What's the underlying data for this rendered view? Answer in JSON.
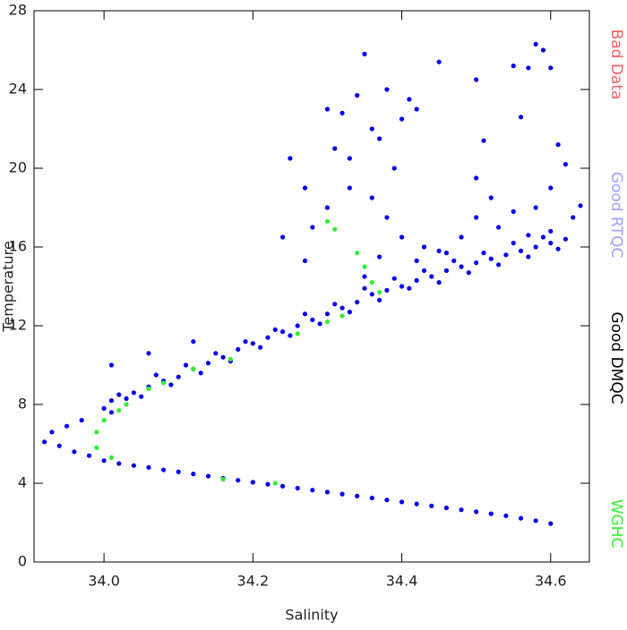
{
  "chart_data": {
    "type": "scatter",
    "x_label": "Salinity",
    "y_label": "Temperature",
    "xlim": [
      33.906,
      34.652
    ],
    "ylim": [
      0,
      28
    ],
    "xticks": [
      {
        "value": 34,
        "label": "34.0"
      },
      34.2,
      34.4,
      34.6
    ],
    "yticks": [
      0,
      4,
      8,
      12,
      16,
      20,
      24,
      28
    ],
    "series": [
      {
        "name": "Bad Data",
        "color": "#f06060",
        "x": [],
        "y": []
      },
      {
        "name": "Good RTQC",
        "color": "#a0a0ff",
        "x": [],
        "y": []
      },
      {
        "name": "Good DMQC",
        "color": "#000000",
        "marker_color": "#0000ee",
        "x": [
          34.0,
          34.02,
          34.04,
          34.06,
          34.08,
          34.1,
          34.12,
          34.14,
          34.16,
          34.18,
          34.2,
          34.22,
          34.24,
          34.26,
          34.28,
          34.3,
          34.32,
          34.34,
          34.36,
          34.38,
          34.4,
          34.42,
          34.44,
          34.46,
          34.48,
          34.5,
          34.52,
          34.54,
          34.56,
          34.58,
          34.6,
          33.92,
          33.94,
          33.96,
          33.98,
          33.93,
          33.95,
          33.97,
          34.0,
          34.01,
          34.03,
          34.04,
          34.06,
          34.08,
          34.1,
          34.12,
          34.14,
          34.16,
          34.18,
          34.2,
          34.22,
          34.24,
          34.26,
          34.28,
          34.3,
          34.32,
          34.34,
          34.36,
          34.38,
          34.4,
          34.42,
          34.44,
          34.46,
          34.48,
          34.5,
          34.52,
          34.54,
          34.56,
          34.58,
          34.6,
          34.62,
          34.01,
          34.02,
          34.05,
          34.07,
          34.09,
          34.11,
          34.13,
          34.15,
          34.17,
          34.19,
          34.21,
          34.23,
          34.25,
          34.27,
          34.29,
          34.31,
          34.33,
          34.35,
          34.37,
          34.39,
          34.41,
          34.43,
          34.45,
          34.47,
          34.49,
          34.51,
          34.53,
          34.55,
          34.57,
          34.59,
          34.61,
          34.25,
          34.27,
          34.3,
          34.32,
          34.31,
          34.33,
          34.34,
          34.35,
          34.36,
          34.37,
          34.38,
          34.39,
          34.4,
          34.41,
          34.42,
          34.45,
          34.5,
          34.51,
          34.5,
          34.52,
          34.55,
          34.56,
          34.57,
          34.58,
          34.59,
          34.6,
          34.61,
          34.62,
          34.6,
          34.63,
          34.28,
          34.3,
          34.33,
          34.36,
          34.38,
          34.4,
          34.43,
          34.46,
          34.48,
          34.5,
          34.53,
          34.55,
          34.58,
          34.24,
          34.27,
          34.06,
          34.01,
          34.12,
          34.35,
          34.37,
          34.42,
          34.45,
          34.64,
          34.6,
          34.57
        ],
        "y": [
          5.15,
          5.0,
          4.9,
          4.8,
          4.68,
          4.58,
          4.47,
          4.36,
          4.25,
          4.15,
          4.05,
          3.95,
          3.85,
          3.75,
          3.65,
          3.55,
          3.45,
          3.35,
          3.25,
          3.15,
          3.05,
          2.95,
          2.85,
          2.75,
          2.65,
          2.55,
          2.45,
          2.35,
          2.22,
          2.1,
          1.95,
          6.1,
          5.9,
          5.6,
          5.4,
          6.6,
          6.9,
          7.2,
          7.8,
          8.2,
          8.3,
          8.6,
          8.9,
          9.2,
          9.4,
          9.8,
          10.1,
          10.4,
          10.8,
          11.1,
          11.4,
          11.7,
          12.0,
          12.3,
          12.6,
          12.9,
          13.2,
          13.6,
          13.8,
          14.0,
          14.3,
          14.5,
          14.8,
          15.0,
          15.2,
          15.4,
          15.6,
          15.8,
          16.0,
          16.2,
          16.4,
          7.6,
          8.5,
          8.4,
          9.5,
          9.0,
          10.0,
          9.6,
          10.6,
          10.2,
          11.2,
          10.9,
          11.8,
          11.5,
          12.6,
          12.1,
          13.1,
          12.7,
          13.9,
          13.3,
          14.4,
          13.9,
          14.8,
          14.2,
          15.3,
          14.7,
          15.7,
          15.1,
          16.2,
          15.5,
          16.5,
          15.9,
          20.5,
          19.0,
          23.0,
          22.8,
          21.0,
          20.5,
          23.7,
          25.8,
          22.0,
          21.5,
          24.0,
          20.0,
          22.5,
          23.5,
          23.0,
          25.4,
          24.5,
          21.4,
          19.5,
          18.5,
          25.2,
          22.6,
          25.1,
          26.3,
          26.0,
          25.1,
          21.2,
          20.2,
          19.0,
          17.5,
          17.0,
          18.0,
          19.0,
          18.5,
          17.5,
          16.5,
          16.0,
          15.7,
          16.5,
          17.5,
          17.0,
          17.8,
          18.0,
          16.5,
          15.3,
          10.6,
          10.0,
          11.2,
          14.5,
          15.5,
          15.3,
          15.8,
          18.1,
          16.8,
          16.6
        ]
      },
      {
        "name": "WGHC",
        "color": "#33ee33",
        "marker_color": "#33ee33",
        "x": [
          33.99,
          33.99,
          34.0,
          34.01,
          34.02,
          34.03,
          34.06,
          34.08,
          34.12,
          34.17,
          34.23,
          34.16,
          34.26,
          34.3,
          34.32,
          34.3,
          34.31,
          34.34,
          34.35,
          34.36,
          34.37
        ],
        "y": [
          6.6,
          5.8,
          7.2,
          5.3,
          7.7,
          8.0,
          8.8,
          9.1,
          9.8,
          10.3,
          4.0,
          4.2,
          11.6,
          12.2,
          12.5,
          17.3,
          16.9,
          15.7,
          15.0,
          14.2,
          13.7
        ]
      }
    ]
  }
}
